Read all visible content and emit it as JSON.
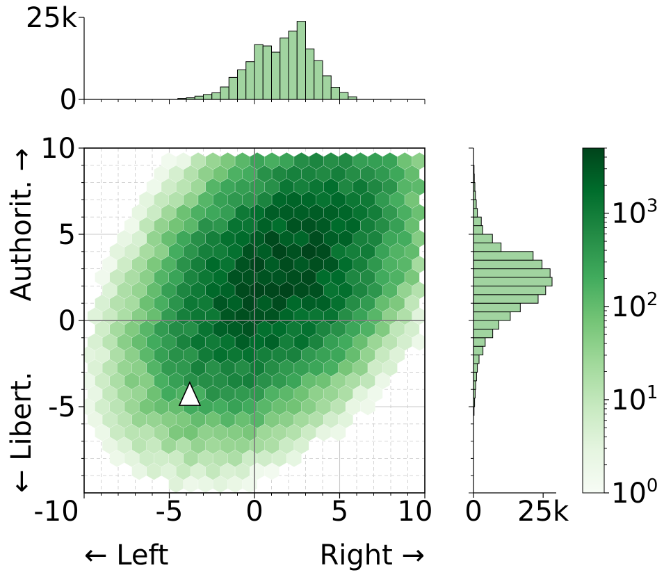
{
  "chart_data": {
    "type": "hexbin",
    "main": {
      "xlim": [
        -10,
        10
      ],
      "ylim": [
        -10,
        10
      ],
      "x_ticks": [
        "-10",
        "-5",
        "0",
        "5",
        "10"
      ],
      "x_tick_values": [
        -10,
        -5,
        0,
        5,
        10
      ],
      "y_ticks": [
        "10",
        "5",
        "0",
        "-5"
      ],
      "y_tick_values": [
        10,
        5,
        0,
        -5
      ],
      "xlabel_left": "← Left",
      "xlabel_right": "Right →",
      "ylabel_top": "Authorit. →",
      "ylabel_bottom": "← Libert.",
      "grid": true,
      "marker": {
        "shape": "triangle",
        "x": -3.8,
        "y": -4.4
      }
    },
    "top_histogram": {
      "y_ticks": [
        "25k",
        "0"
      ],
      "y_tick_values": [
        25000,
        0
      ],
      "bins_x_start": [
        -4.5,
        -4.0,
        -3.5,
        -3.0,
        -2.5,
        -2.0,
        -1.5,
        -1.0,
        -0.5,
        0.0,
        0.5,
        1.0,
        1.5,
        2.0,
        2.5,
        3.0,
        3.5,
        4.0,
        4.5,
        5.0,
        5.5
      ],
      "bin_width": 0.5,
      "counts": [
        300,
        500,
        1000,
        1500,
        2000,
        3800,
        6700,
        9000,
        11500,
        16700,
        16300,
        14400,
        18700,
        20800,
        23800,
        15400,
        11800,
        7200,
        3700,
        2100,
        800
      ]
    },
    "right_histogram": {
      "x_ticks": [
        "0",
        "25k"
      ],
      "x_tick_values": [
        0,
        25000
      ],
      "bins_y_start": [
        -5.5,
        -5.0,
        -4.5,
        -4.0,
        -3.5,
        -3.0,
        -2.5,
        -2.0,
        -1.5,
        -1.0,
        -0.5,
        0.0,
        0.5,
        1.0,
        1.5,
        2.0,
        2.5,
        3.0,
        3.5,
        4.0,
        4.5,
        5.0,
        5.5,
        6.0,
        6.5,
        7.0,
        7.5,
        8.0,
        8.5
      ],
      "bin_width": 0.5,
      "counts": [
        200,
        400,
        600,
        800,
        1100,
        1400,
        2000,
        3400,
        4200,
        6900,
        9100,
        13200,
        16800,
        23200,
        25900,
        28200,
        27500,
        24600,
        21400,
        9900,
        6800,
        3300,
        2800,
        1400,
        1000,
        700,
        500,
        300,
        200
      ]
    },
    "colorbar": {
      "scale": "log",
      "range": [
        1,
        5000
      ],
      "ticks": [
        {
          "base": "10",
          "exp": "0",
          "value": 1
        },
        {
          "base": "10",
          "exp": "1",
          "value": 10
        },
        {
          "base": "10",
          "exp": "2",
          "value": 100
        },
        {
          "base": "10",
          "exp": "3",
          "value": 1000
        }
      ],
      "colormap": "Greens",
      "colors": [
        "#f7fcf5",
        "#e5f5e0",
        "#c7e9c0",
        "#a1d99b",
        "#74c476",
        "#41ab5d",
        "#238b45",
        "#006d2c",
        "#00441b"
      ]
    },
    "hex_density": {
      "center_x": 1.5,
      "center_y": 2.8,
      "sx": 2.9,
      "sy": 3.2,
      "rho": 0.45,
      "peak_count": 4500,
      "hex_size": 0.5
    },
    "histogram_fill": "#a1d4a0"
  }
}
